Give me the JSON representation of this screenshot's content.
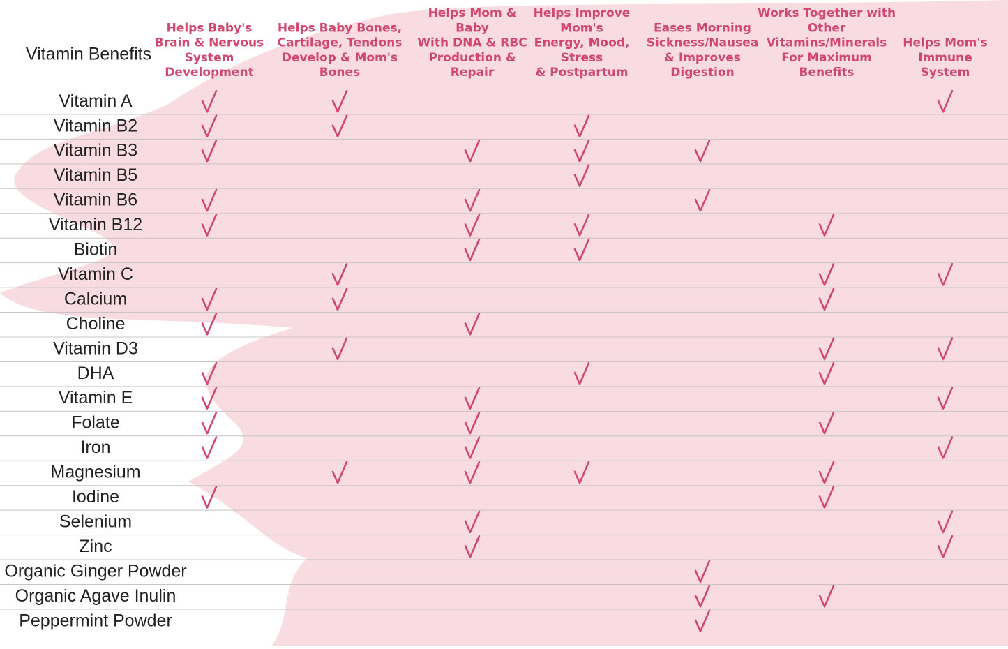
{
  "corner": "Vitamin Benefits",
  "columns": [
    [
      "Helps Baby's",
      "Brain & Nervous",
      "System",
      "Development"
    ],
    [
      "Helps Baby Bones,",
      "Cartilage, Tendons",
      "Develop & Mom's",
      "Bones"
    ],
    [
      "Helps Mom &",
      "Baby",
      "With DNA & RBC",
      "Production &",
      "Repair"
    ],
    [
      "Helps Improve",
      "Mom's",
      "Energy, Mood,",
      "Stress",
      "& Postpartum"
    ],
    [
      "Eases Morning",
      "Sickness/Nausea",
      "& Improves",
      "Digestion"
    ],
    [
      "Works Together with",
      "Other",
      "Vitamins/Minerals",
      "For Maximum",
      "Benefits"
    ],
    [
      "Helps Mom's",
      "Immune",
      "System"
    ]
  ],
  "rows": [
    {
      "name": "Vitamin A",
      "checks": [
        true,
        true,
        false,
        false,
        false,
        false,
        true
      ]
    },
    {
      "name": "Vitamin B2",
      "checks": [
        true,
        true,
        false,
        true,
        false,
        false,
        false
      ]
    },
    {
      "name": "Vitamin B3",
      "checks": [
        true,
        false,
        true,
        true,
        true,
        false,
        false
      ]
    },
    {
      "name": "Vitamin B5",
      "checks": [
        false,
        false,
        false,
        true,
        false,
        false,
        false
      ]
    },
    {
      "name": "Vitamin B6",
      "checks": [
        true,
        false,
        true,
        false,
        true,
        false,
        false
      ]
    },
    {
      "name": "Vitamin B12",
      "checks": [
        true,
        false,
        true,
        true,
        false,
        true,
        false
      ]
    },
    {
      "name": "Biotin",
      "checks": [
        false,
        false,
        true,
        true,
        false,
        false,
        false
      ]
    },
    {
      "name": "Vitamin C",
      "checks": [
        false,
        true,
        false,
        false,
        false,
        true,
        true
      ]
    },
    {
      "name": "Calcium",
      "checks": [
        true,
        true,
        false,
        false,
        false,
        true,
        false
      ]
    },
    {
      "name": "Choline",
      "checks": [
        true,
        false,
        true,
        false,
        false,
        false,
        false
      ]
    },
    {
      "name": "Vitamin D3",
      "checks": [
        false,
        true,
        false,
        false,
        false,
        true,
        true
      ]
    },
    {
      "name": "DHA",
      "checks": [
        true,
        false,
        false,
        true,
        false,
        true,
        false
      ]
    },
    {
      "name": "Vitamin E",
      "checks": [
        true,
        false,
        true,
        false,
        false,
        false,
        true
      ]
    },
    {
      "name": "Folate",
      "checks": [
        true,
        false,
        true,
        false,
        false,
        true,
        false
      ]
    },
    {
      "name": "Iron",
      "checks": [
        true,
        false,
        true,
        false,
        false,
        false,
        true
      ]
    },
    {
      "name": "Magnesium",
      "checks": [
        false,
        true,
        true,
        true,
        false,
        true,
        false
      ]
    },
    {
      "name": "Iodine",
      "checks": [
        true,
        false,
        false,
        false,
        false,
        true,
        false
      ]
    },
    {
      "name": "Selenium",
      "checks": [
        false,
        false,
        true,
        false,
        false,
        false,
        true
      ]
    },
    {
      "name": "Zinc",
      "checks": [
        false,
        false,
        true,
        false,
        false,
        false,
        true
      ]
    },
    {
      "name": "Organic Ginger Powder",
      "checks": [
        false,
        false,
        false,
        false,
        true,
        false,
        false
      ]
    },
    {
      "name": "Organic Agave Inulin",
      "checks": [
        false,
        false,
        false,
        false,
        true,
        true,
        false
      ]
    },
    {
      "name": "Peppermint Powder",
      "checks": [
        false,
        false,
        false,
        false,
        true,
        false,
        false
      ]
    }
  ]
}
